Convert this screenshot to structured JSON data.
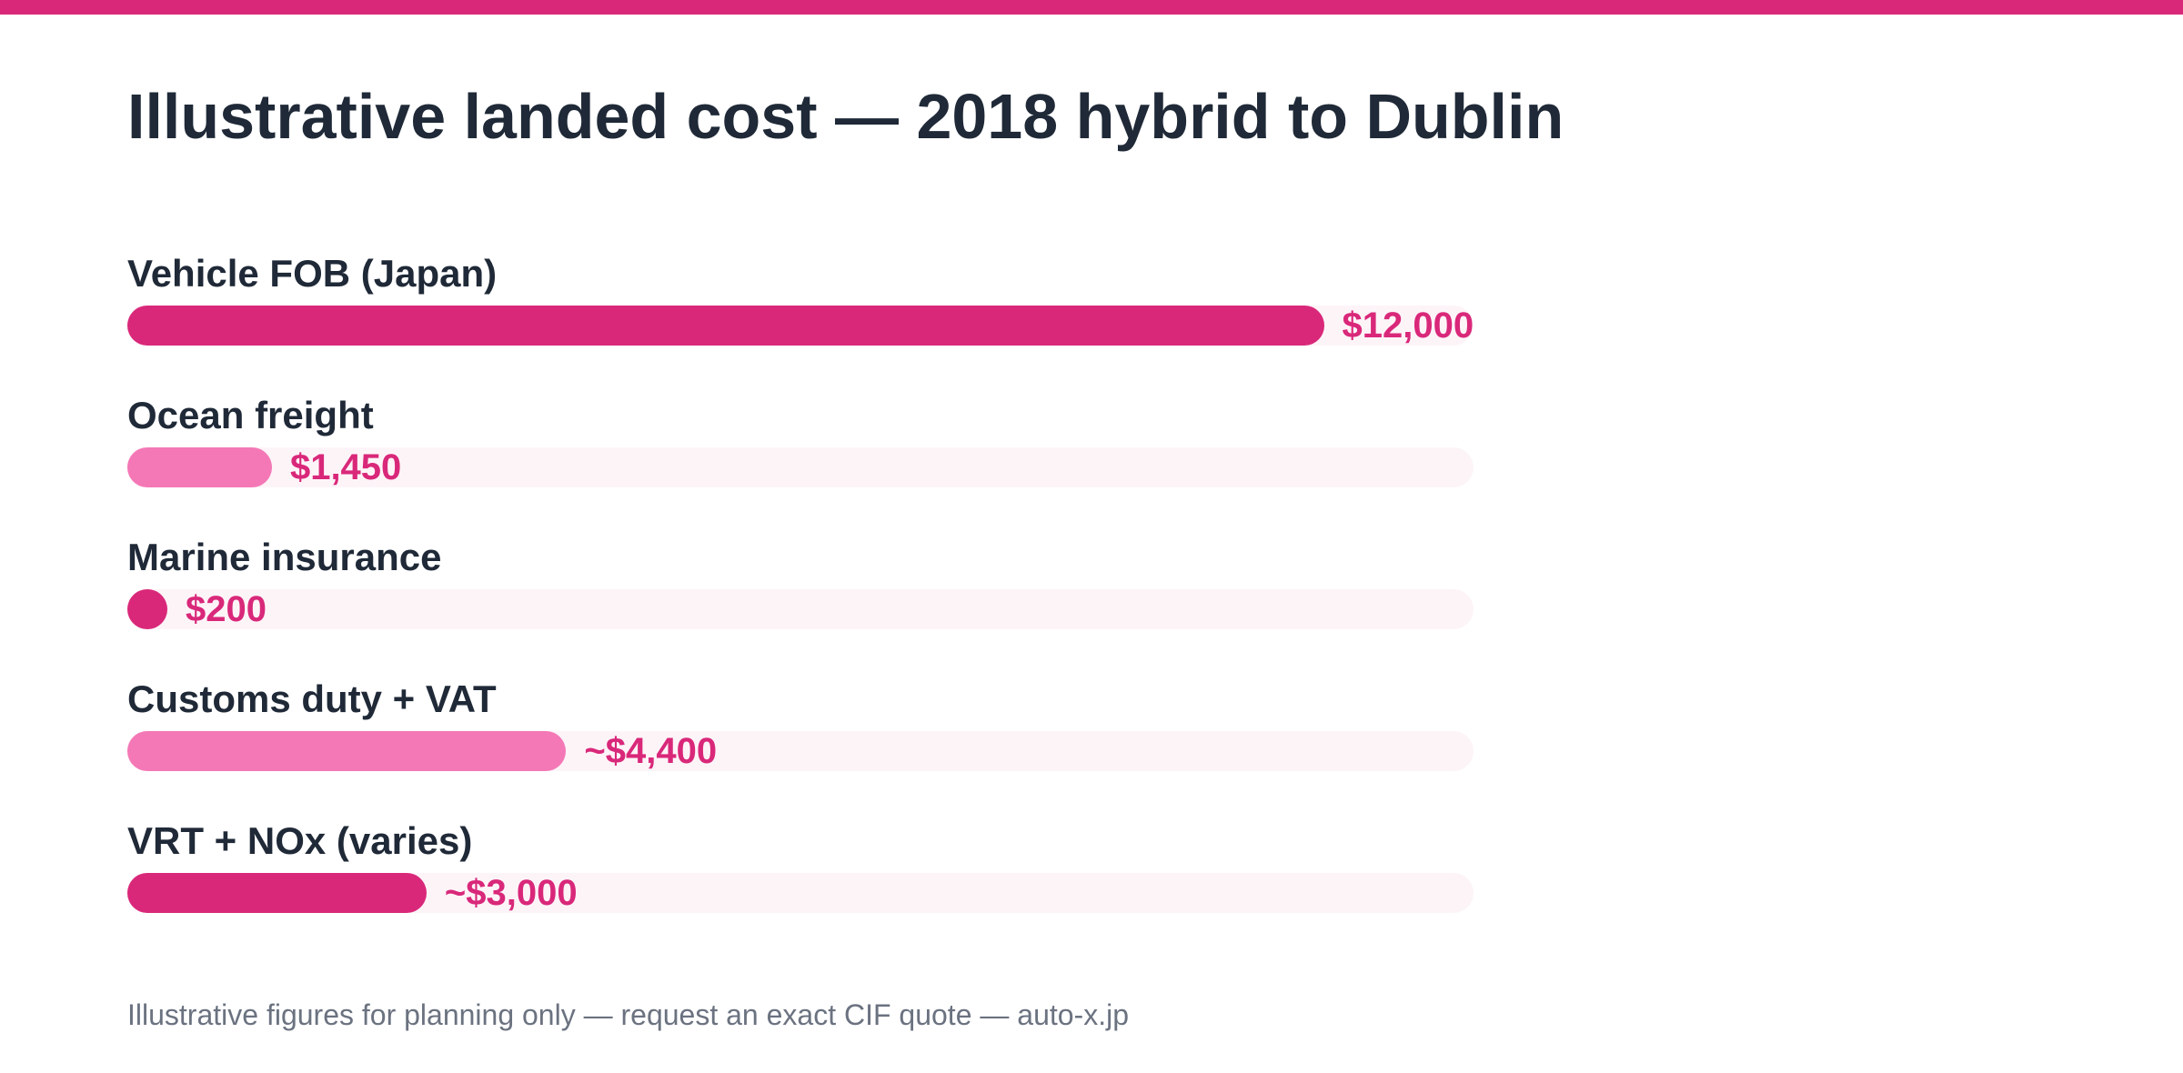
{
  "colors": {
    "accent": "#d9287a",
    "accent_light": "#f478b6",
    "track": "#fdf4f8",
    "text": "#1f2937",
    "muted": "#6b7280",
    "background": "#ffffff"
  },
  "chart_data": {
    "type": "bar",
    "orientation": "horizontal",
    "title": "Illustrative landed cost — 2018 hybrid to Dublin",
    "xlabel": "",
    "ylabel": "",
    "xlim": [
      0,
      13500
    ],
    "grid": false,
    "legend": "none",
    "categories": [
      "Vehicle FOB (Japan)",
      "Ocean freight",
      "Marine insurance",
      "Customs duty + VAT",
      "VRT + NOx (varies)"
    ],
    "values": [
      12000,
      1450,
      200,
      4400,
      3000
    ],
    "value_labels": [
      "$12,000",
      "$1,450",
      "$200",
      "~$4,400",
      "~$3,000"
    ],
    "bar_colors": [
      "#d9287a",
      "#f478b6",
      "#d9287a",
      "#f478b6",
      "#d9287a"
    ]
  },
  "footnote": "Illustrative figures for planning only — request an exact CIF quote — auto-x.jp"
}
